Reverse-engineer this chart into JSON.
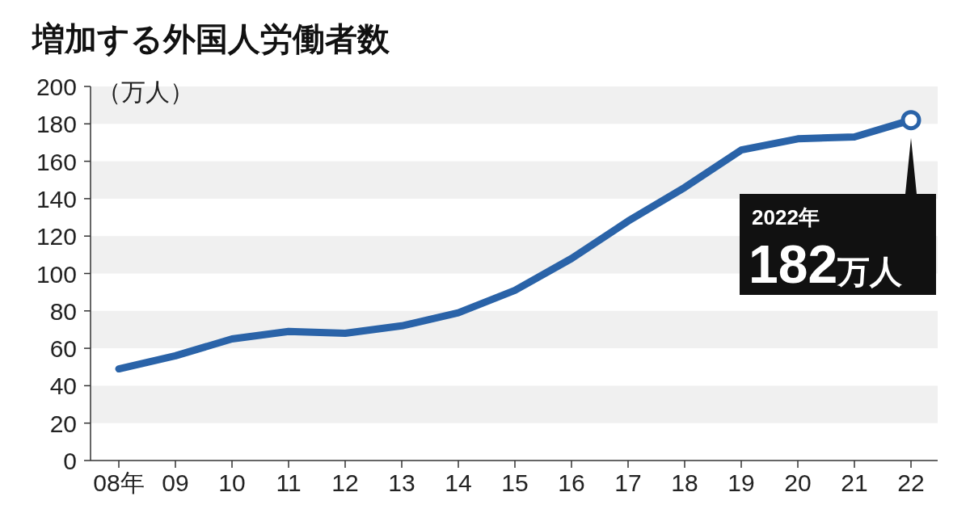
{
  "chart_data": {
    "type": "line",
    "title": "増加する外国人労働者数",
    "ylabel": "（万人）",
    "categories": [
      "08年",
      "09",
      "10",
      "11",
      "12",
      "13",
      "14",
      "15",
      "16",
      "17",
      "18",
      "19",
      "20",
      "21",
      "22"
    ],
    "values": [
      49,
      56,
      65,
      69,
      68,
      72,
      79,
      91,
      108,
      128,
      146,
      166,
      172,
      173,
      182
    ],
    "color": "#2a63a8",
    "ylim": [
      0,
      200
    ],
    "yticks": [
      0,
      20,
      40,
      60,
      80,
      100,
      120,
      140,
      160,
      180,
      200
    ],
    "bands": [
      {
        "axis": "y",
        "from": 20,
        "to": 40,
        "color": "#f0f0f0"
      },
      {
        "axis": "y",
        "from": 60,
        "to": 80,
        "color": "#f0f0f0"
      },
      {
        "axis": "y",
        "from": 100,
        "to": 120,
        "color": "#f0f0f0"
      },
      {
        "axis": "y",
        "from": 140,
        "to": 160,
        "color": "#f0f0f0"
      },
      {
        "axis": "y",
        "from": 180,
        "to": 200,
        "color": "#f0f0f0"
      }
    ],
    "annotations": [
      "2022年",
      "182万人"
    ]
  }
}
